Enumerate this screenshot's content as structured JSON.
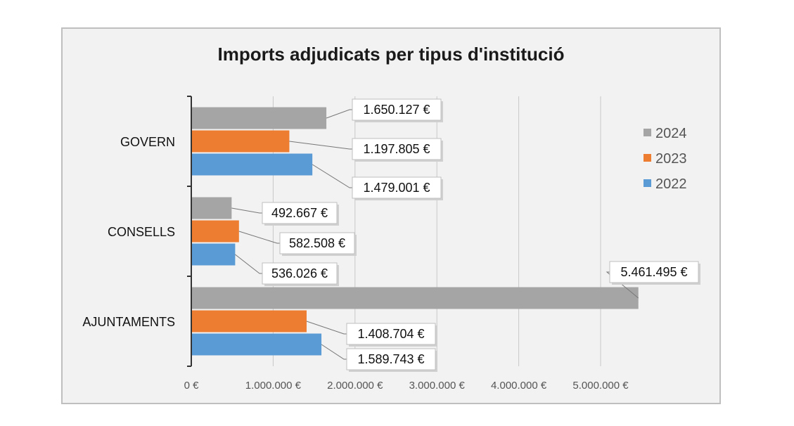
{
  "chart_data": {
    "type": "bar",
    "orientation": "horizontal",
    "title": "Imports adjudicats per tipus d'institució",
    "categories": [
      "GOVERN",
      "CONSELLS",
      "AJUNTAMENTS"
    ],
    "series": [
      {
        "name": "2024",
        "color": "#a5a5a5",
        "values": [
          1650127,
          492667,
          5461495
        ],
        "labels": [
          "1.650.127 €",
          "492.667 €",
          "5.461.495 €"
        ]
      },
      {
        "name": "2023",
        "color": "#ed7d31",
        "values": [
          1197805,
          582508,
          1408704
        ],
        "labels": [
          "1.197.805 €",
          "582.508 €",
          "1.408.704 €"
        ]
      },
      {
        "name": "2022",
        "color": "#5b9bd5",
        "values": [
          1479001,
          536026,
          1589743
        ],
        "labels": [
          "1.479.001 €",
          "536.026 €",
          "1.589.743 €"
        ]
      }
    ],
    "xlim": [
      0,
      5000000
    ],
    "xticks": [
      0,
      1000000,
      2000000,
      3000000,
      4000000,
      5000000
    ],
    "xtick_labels": [
      "0 €",
      "1.000.000 €",
      "2.000.000 €",
      "3.000.000 €",
      "4.000.000 €",
      "5.000.000 €"
    ],
    "grid": "vertical",
    "legend": {
      "position": "right",
      "order": [
        "2024",
        "2023",
        "2022"
      ]
    },
    "xlabel": "",
    "ylabel": ""
  }
}
